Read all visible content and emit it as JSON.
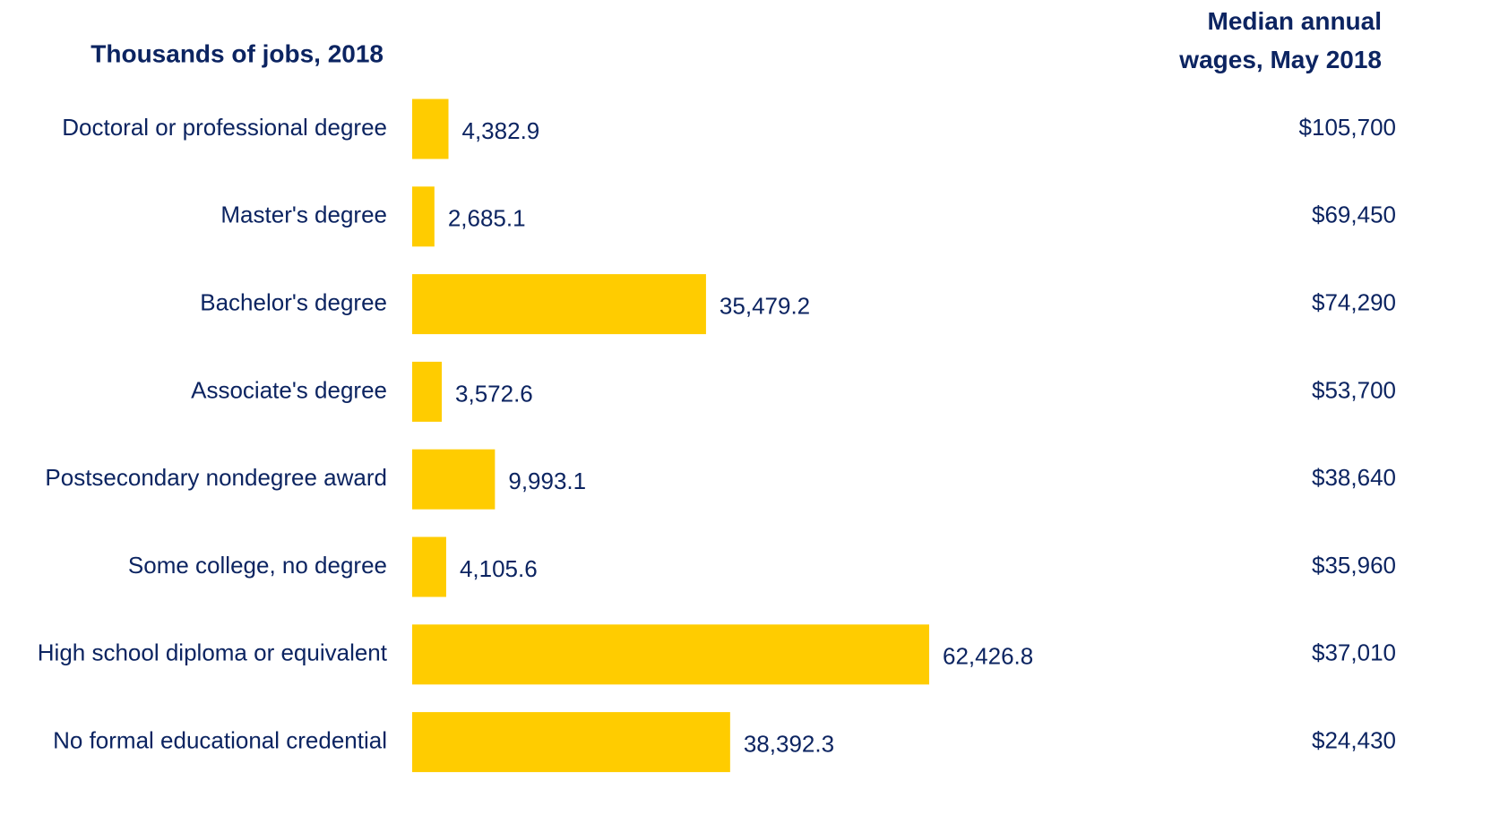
{
  "chart_data": {
    "type": "bar",
    "orientation": "horizontal",
    "title": "Thousands of jobs, 2018",
    "categories": [
      "Doctoral or professional degree",
      "Master's degree",
      "Bachelor's degree",
      "Associate's degree",
      "Postsecondary nondegree award",
      "Some college, no degree",
      "High school diploma or equivalent",
      "No formal educational credential"
    ],
    "values": [
      4382.9,
      2685.1,
      35479.2,
      3572.6,
      9993.1,
      4105.6,
      62426.8,
      38392.3
    ],
    "value_labels": [
      "4,382.9",
      "2,685.1",
      "35,479.2",
      "3,572.6",
      "9,993.1",
      "4,105.6",
      "62,426.8",
      "38,392.3"
    ],
    "color": "#ffcc00",
    "wages": {
      "name": "Median annual wages, May 2018",
      "values": [
        105700,
        69450,
        74290,
        53700,
        38640,
        35960,
        37010,
        24430
      ],
      "value_labels": [
        "$105,700",
        "$69,450",
        "$74,290",
        "$53,700",
        "$38,640",
        "$35,960",
        "$37,010",
        "$24,430"
      ]
    }
  }
}
